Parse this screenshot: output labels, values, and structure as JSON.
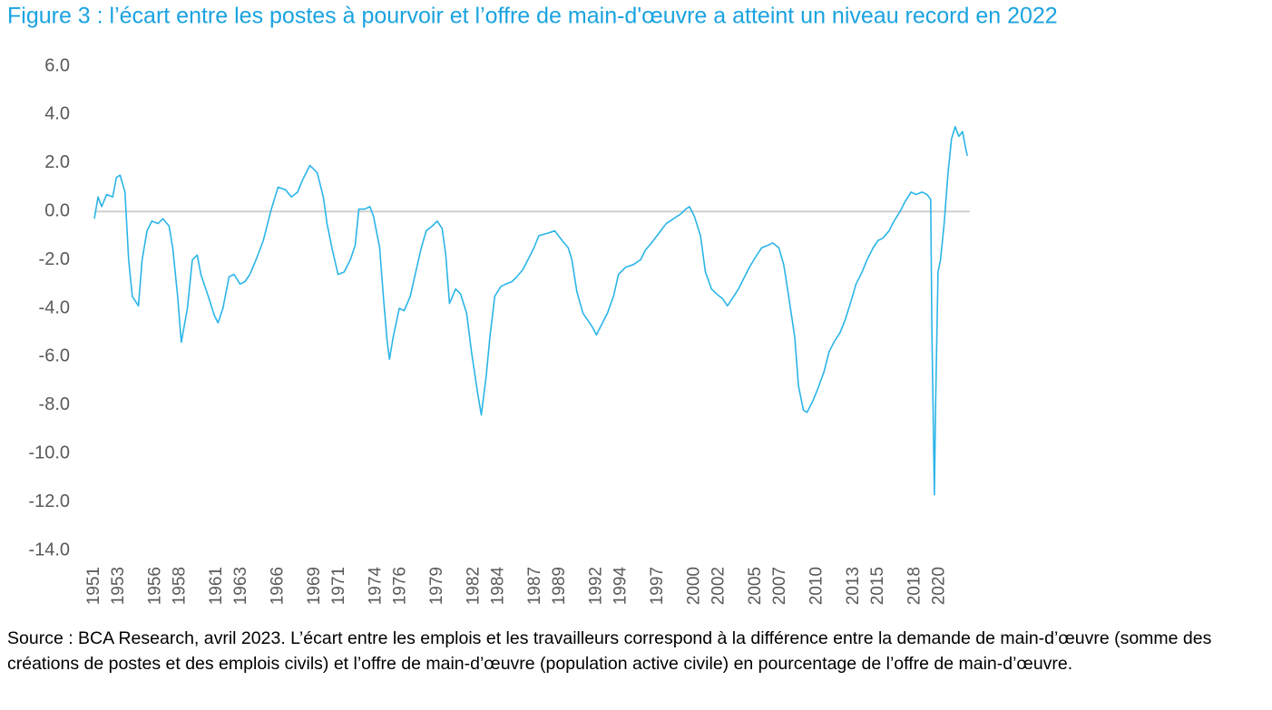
{
  "chart_data": {
    "type": "line",
    "title": "Figure 3 : l’écart entre les postes à pourvoir et l’offre de main-d'œuvre a atteint un niveau record en 2022",
    "source": "Source : BCA Research, avril 2023. L’écart entre les emplois et les travailleurs correspond à la différence entre la demande de main-d’œuvre (somme des créations de postes et des emplois civils) et l’offre de main-d’œuvre (population active civile) en pourcentage de l’offre de main-d’œuvre.",
    "color": "#2bb5e8",
    "zero_line": true,
    "xlim": [
      1951,
      2022.5
    ],
    "xticks": [
      1951,
      1953,
      1956,
      1958,
      1961,
      1963,
      1966,
      1969,
      1971,
      1974,
      1976,
      1979,
      1982,
      1984,
      1987,
      1989,
      1992,
      1994,
      1997,
      2000,
      2002,
      2005,
      2007,
      2010,
      2013,
      2015,
      2018,
      2020
    ],
    "ylim": [
      -14,
      6
    ],
    "yticks": [
      {
        "value": 6,
        "label": "6.0"
      },
      {
        "value": 4,
        "label": "4.0"
      },
      {
        "value": 2,
        "label": "2.0"
      },
      {
        "value": 0,
        "label": "0.0"
      },
      {
        "value": -2,
        "label": "-2.0"
      },
      {
        "value": -4,
        "label": "-4.0"
      },
      {
        "value": -6,
        "label": "-6.0"
      },
      {
        "value": -8,
        "label": "-8.0"
      },
      {
        "value": -10,
        "label": "-10.0"
      },
      {
        "value": -12,
        "label": "-12.0"
      },
      {
        "value": -14,
        "label": "-14.0"
      }
    ],
    "x": [
      1951.0,
      1951.3,
      1951.6,
      1952.0,
      1952.5,
      1952.8,
      1953.1,
      1953.5,
      1953.8,
      1954.1,
      1954.6,
      1954.9,
      1955.3,
      1955.7,
      1956.2,
      1956.6,
      1957.1,
      1957.4,
      1957.8,
      1958.1,
      1958.6,
      1959.0,
      1959.4,
      1959.7,
      1960.3,
      1960.8,
      1961.1,
      1961.5,
      1962.0,
      1962.4,
      1962.9,
      1963.3,
      1963.7,
      1964.2,
      1964.8,
      1965.4,
      1966.0,
      1966.6,
      1967.1,
      1967.6,
      1968.0,
      1968.6,
      1969.2,
      1969.7,
      1970.0,
      1970.4,
      1970.9,
      1971.4,
      1971.9,
      1972.3,
      1972.6,
      1973.1,
      1973.5,
      1973.8,
      1974.3,
      1974.6,
      1974.9,
      1975.1,
      1975.4,
      1975.9,
      1976.3,
      1976.8,
      1977.2,
      1977.7,
      1978.1,
      1978.6,
      1979.0,
      1979.4,
      1979.7,
      1980.0,
      1980.5,
      1980.9,
      1981.4,
      1981.8,
      1982.3,
      1982.6,
      1983.0,
      1983.3,
      1983.7,
      1984.2,
      1984.6,
      1985.1,
      1985.5,
      1986.0,
      1986.4,
      1986.9,
      1987.3,
      1988.0,
      1988.6,
      1989.2,
      1989.7,
      1990.0,
      1990.4,
      1990.9,
      1991.3,
      1991.7,
      1992.0,
      1992.5,
      1992.9,
      1993.4,
      1993.8,
      1994.4,
      1995.0,
      1995.6,
      1996.0,
      1996.5,
      1997.1,
      1997.7,
      1998.3,
      1998.9,
      1999.3,
      1999.6,
      2000.0,
      2000.5,
      2000.9,
      2001.4,
      2001.8,
      2002.3,
      2002.7,
      2003.1,
      2003.6,
      2004.0,
      2004.5,
      2005.1,
      2005.5,
      2006.0,
      2006.4,
      2006.9,
      2007.3,
      2007.7,
      2008.2,
      2008.5,
      2008.9,
      2009.2,
      2009.7,
      2010.1,
      2010.6,
      2011.0,
      2011.4,
      2011.9,
      2012.3,
      2012.8,
      2013.2,
      2013.7,
      2014.1,
      2014.6,
      2015.0,
      2015.4,
      2015.9,
      2016.3,
      2016.8,
      2017.2,
      2017.7,
      2018.1,
      2018.6,
      2019.0,
      2019.3,
      2019.4,
      2019.6,
      2019.7,
      2019.9,
      2020.1,
      2020.4,
      2020.7,
      2021.0,
      2021.3,
      2021.6,
      2021.9,
      2022.2,
      2022.3
    ],
    "values": [
      -0.3,
      0.6,
      0.2,
      0.7,
      0.6,
      1.4,
      1.5,
      0.8,
      -2.0,
      -3.5,
      -3.9,
      -2.0,
      -0.8,
      -0.4,
      -0.5,
      -0.3,
      -0.6,
      -1.5,
      -3.5,
      -5.4,
      -4.0,
      -2.0,
      -1.8,
      -2.6,
      -3.5,
      -4.3,
      -4.6,
      -4.0,
      -2.7,
      -2.6,
      -3.0,
      -2.9,
      -2.6,
      -2.0,
      -1.2,
      0.0,
      1.0,
      0.9,
      0.6,
      0.8,
      1.3,
      1.9,
      1.6,
      0.6,
      -0.5,
      -1.5,
      -2.6,
      -2.5,
      -2.0,
      -1.4,
      0.1,
      0.1,
      0.2,
      -0.2,
      -1.5,
      -3.5,
      -5.3,
      -6.1,
      -5.2,
      -4.0,
      -4.1,
      -3.5,
      -2.6,
      -1.5,
      -0.8,
      -0.6,
      -0.4,
      -0.7,
      -1.8,
      -3.8,
      -3.2,
      -3.4,
      -4.2,
      -5.8,
      -7.5,
      -8.4,
      -6.8,
      -5.2,
      -3.5,
      -3.1,
      -3.0,
      -2.9,
      -2.7,
      -2.4,
      -2.0,
      -1.5,
      -1.0,
      -0.9,
      -0.8,
      -1.2,
      -1.5,
      -2.0,
      -3.3,
      -4.2,
      -4.5,
      -4.8,
      -5.1,
      -4.6,
      -4.2,
      -3.5,
      -2.6,
      -2.3,
      -2.2,
      -2.0,
      -1.6,
      -1.3,
      -0.9,
      -0.5,
      -0.3,
      -0.1,
      0.1,
      0.2,
      -0.2,
      -1.0,
      -2.5,
      -3.2,
      -3.4,
      -3.6,
      -3.9,
      -3.6,
      -3.2,
      -2.8,
      -2.3,
      -1.8,
      -1.5,
      -1.4,
      -1.3,
      -1.5,
      -2.2,
      -3.5,
      -5.2,
      -7.2,
      -8.2,
      -8.3,
      -7.8,
      -7.3,
      -6.6,
      -5.8,
      -5.4,
      -5.0,
      -4.5,
      -3.7,
      -3.0,
      -2.5,
      -2.0,
      -1.5,
      -1.2,
      -1.1,
      -0.8,
      -0.4,
      0.0,
      0.4,
      0.8,
      0.7,
      0.8,
      0.7,
      0.5,
      -5.0,
      -11.7,
      -8.0,
      -2.5,
      -2.0,
      -0.5,
      1.5,
      3.0,
      3.5,
      3.1,
      3.3,
      2.5,
      2.3
    ]
  }
}
